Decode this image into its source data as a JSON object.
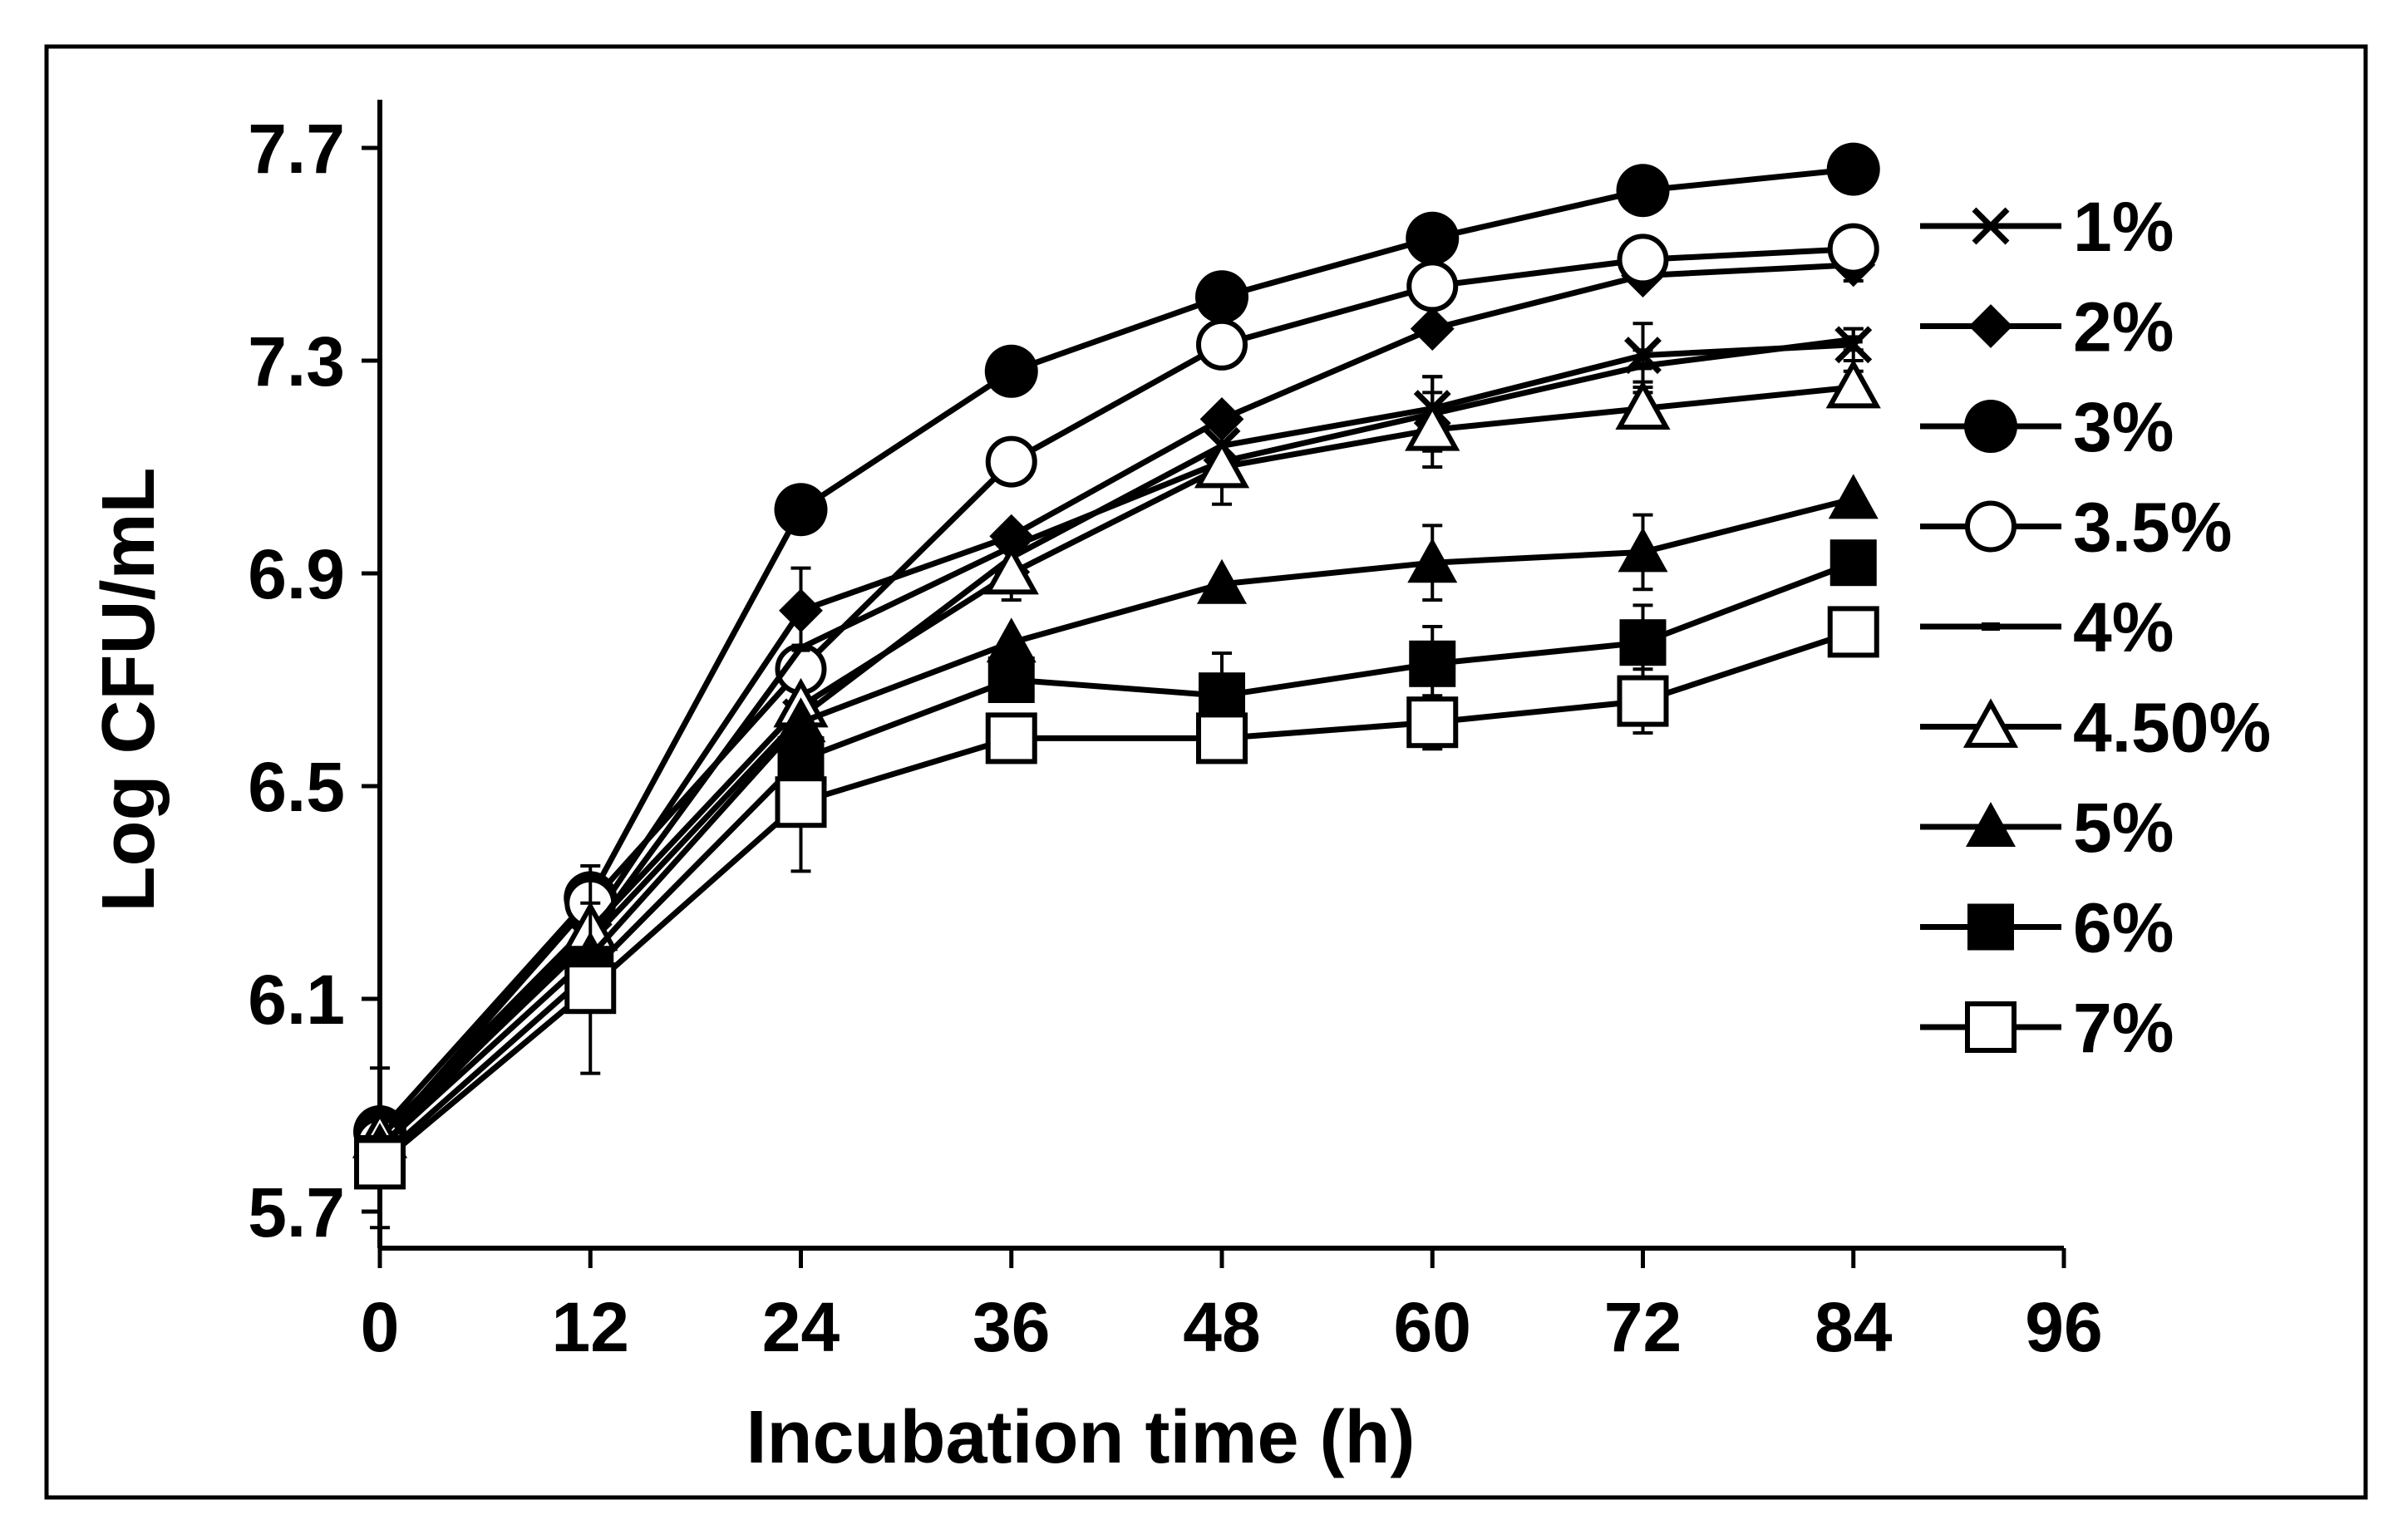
{
  "chart_data": {
    "type": "line",
    "title": "",
    "xlabel": "Incubation time (h)",
    "ylabel": "Log CFU/mL",
    "xlim": [
      0,
      96
    ],
    "ylim": [
      5.7,
      7.8
    ],
    "x_ticks": [
      "0",
      "12",
      "24",
      "36",
      "48",
      "60",
      "72",
      "84",
      "96"
    ],
    "y_ticks": [
      "5.7",
      "6.1",
      "6.5",
      "6.9",
      "7.3",
      "7.7"
    ],
    "grid": false,
    "legend_position": "right",
    "x": [
      0,
      12,
      24,
      36,
      48,
      60,
      72,
      84
    ],
    "series": [
      {
        "name": "1%",
        "marker": "cross",
        "values": [
          5.83,
          6.21,
          6.63,
          6.93,
          7.14,
          7.21,
          7.31,
          7.33
        ],
        "errors": [
          0,
          0,
          0,
          0,
          0,
          0.06,
          0.06,
          0.03
        ]
      },
      {
        "name": "2%",
        "marker": "diamond-filled",
        "values": [
          5.84,
          6.24,
          6.83,
          6.97,
          7.19,
          7.36,
          7.46,
          7.48
        ],
        "errors": [
          0,
          0,
          0.08,
          0,
          0,
          0,
          0,
          0.03
        ]
      },
      {
        "name": "3%",
        "marker": "circle-filled",
        "values": [
          5.85,
          6.29,
          7.02,
          7.28,
          7.42,
          7.53,
          7.62,
          7.66
        ],
        "errors": [
          0,
          0,
          0.04,
          0,
          0,
          0,
          0,
          0
        ]
      },
      {
        "name": "3.5%",
        "marker": "circle-open",
        "values": [
          5.83,
          6.28,
          6.72,
          7.11,
          7.33,
          7.44,
          7.49,
          7.51
        ],
        "errors": [
          0,
          0,
          0,
          0,
          0.02,
          0.02,
          0.02,
          0.02
        ]
      },
      {
        "name": "4%",
        "marker": "dash",
        "values": [
          5.82,
          6.22,
          6.76,
          6.95,
          7.11,
          7.2,
          7.29,
          7.34
        ],
        "errors": [
          0.15,
          0.13,
          0,
          0,
          0.08,
          0.07,
          0.03,
          0.02
        ]
      },
      {
        "name": "4.50%",
        "marker": "triangle-open",
        "values": [
          5.84,
          6.23,
          6.65,
          6.9,
          7.1,
          7.17,
          7.21,
          7.25
        ],
        "errors": [
          0,
          0,
          0,
          0.05,
          0.02,
          0.07,
          0.03,
          0.03
        ]
      },
      {
        "name": "5%",
        "marker": "triangle-filled",
        "values": [
          5.82,
          6.18,
          6.62,
          6.77,
          6.88,
          6.92,
          6.94,
          7.04
        ],
        "errors": [
          0,
          0,
          0,
          0,
          0,
          0.07,
          0.07,
          0
        ]
      },
      {
        "name": "6%",
        "marker": "square-filled",
        "values": [
          5.8,
          6.15,
          6.55,
          6.7,
          6.67,
          6.73,
          6.77,
          6.92
        ],
        "errors": [
          0,
          0,
          0,
          0,
          0.08,
          0.07,
          0.07,
          0
        ]
      },
      {
        "name": "7%",
        "marker": "square-open",
        "values": [
          5.79,
          6.12,
          6.47,
          6.59,
          6.59,
          6.62,
          6.66,
          6.79
        ],
        "errors": [
          0,
          0.16,
          0.13,
          0,
          0,
          0.05,
          0.06,
          0
        ]
      }
    ]
  }
}
